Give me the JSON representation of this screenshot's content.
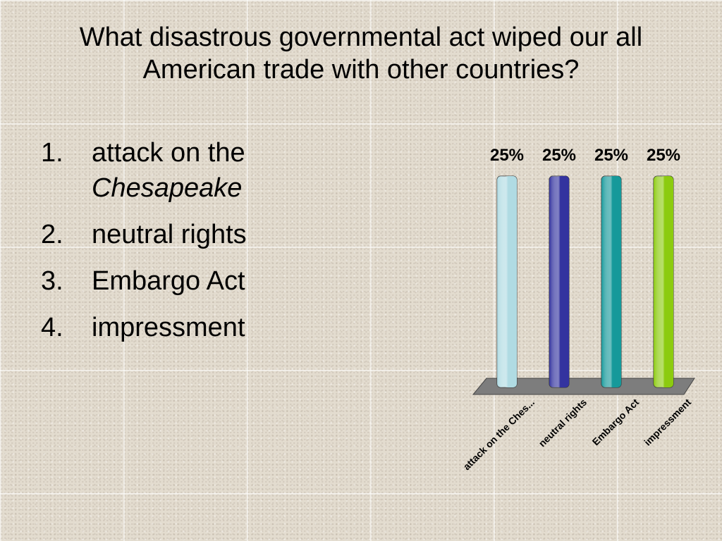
{
  "slide": {
    "title": "What disastrous governmental act wiped our all American trade with other countries?",
    "answers": [
      {
        "num": "1.",
        "text": "attack on the",
        "italic": "Chesapeake"
      },
      {
        "num": "2.",
        "text": "neutral rights",
        "italic": ""
      },
      {
        "num": "3.",
        "text": "Embargo Act",
        "italic": ""
      },
      {
        "num": "4.",
        "text": "impressment",
        "italic": ""
      }
    ]
  },
  "chart_data": {
    "type": "bar",
    "categories": [
      "attack on the Ches...",
      "neutral rights",
      "Embargo Act",
      "impressment"
    ],
    "values": [
      25,
      25,
      25,
      25
    ],
    "value_labels": [
      "25%",
      "25%",
      "25%",
      "25%"
    ],
    "ylim": [
      0,
      25
    ],
    "colors": [
      "#b0dbe3",
      "#33339f",
      "#16999a",
      "#8ccb0f"
    ],
    "floor_color": "#7d7d7d",
    "grid": false,
    "legend": "none"
  }
}
